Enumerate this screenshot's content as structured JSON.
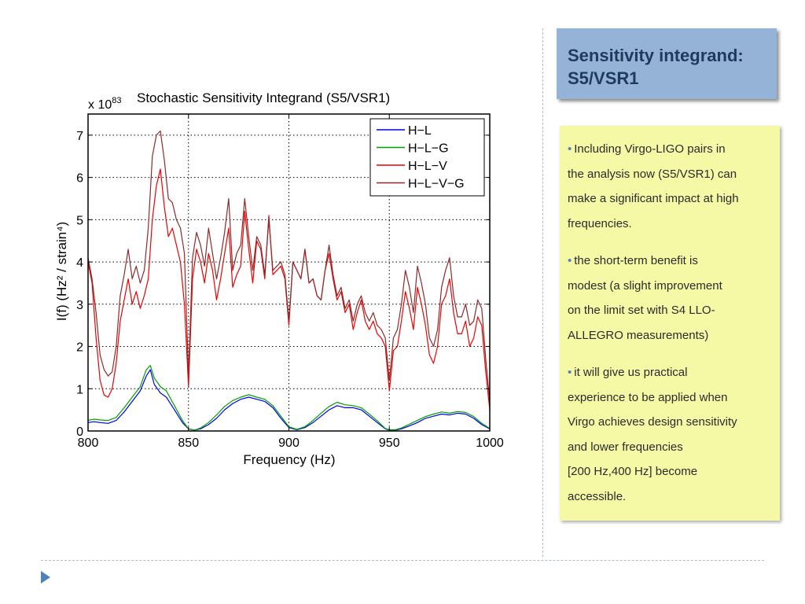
{
  "slide": {
    "title": "Sensitivity integrand: S5/VSR1",
    "bullets": [
      {
        "lines": [
          "Including Virgo-LIGO pairs in",
          "the analysis now (S5/VSR1) can",
          "make a significant impact at high",
          "frequencies."
        ]
      },
      {
        "lines": [
          "the short-term benefit is",
          "modest (a slight improvement",
          "on the limit set with S4 LLO-",
          "ALLEGRO measurements)"
        ]
      },
      {
        "lines": [
          "it will give us practical",
          "experience to be applied when",
          "Virgo achieves design sensitivity",
          "and lower frequencies",
          "[200 Hz,400 Hz] become",
          "accessible."
        ]
      }
    ],
    "colors": {
      "title_bg": "#95b3d7",
      "text_bg": "#f5f9a6",
      "bullet": "#4f81bd"
    }
  },
  "chart_data": {
    "type": "line",
    "title": "Stochastic Sensitivity Integrand (S5/VSR1)",
    "scale_label": "x 10",
    "scale_exponent": "83",
    "xlabel": "Frequency (Hz)",
    "ylabel": "I(f) (Hz² / strain⁴)",
    "xlim": [
      800,
      1000
    ],
    "ylim": [
      0,
      7.5
    ],
    "xticks": [
      800,
      850,
      900,
      950,
      1000
    ],
    "yticks": [
      0,
      1,
      2,
      3,
      4,
      5,
      6,
      7
    ],
    "grid": "dotted",
    "legend_position": "top-right",
    "series": [
      {
        "name": "H−L",
        "color": "#0000ee",
        "x": [
          800,
          803,
          806,
          810,
          814,
          818,
          822,
          826,
          829,
          831,
          833,
          836,
          839,
          843,
          847,
          850,
          853,
          856,
          860,
          864,
          868,
          872,
          876,
          880,
          884,
          888,
          892,
          896,
          900,
          904,
          908,
          912,
          916,
          920,
          924,
          928,
          932,
          936,
          940,
          944,
          948,
          950,
          953,
          956,
          960,
          964,
          968,
          972,
          976,
          980,
          984,
          988,
          992,
          996,
          1000
        ],
        "y": [
          0.2,
          0.22,
          0.2,
          0.18,
          0.25,
          0.45,
          0.7,
          0.95,
          1.3,
          1.45,
          1.1,
          0.9,
          0.8,
          0.5,
          0.2,
          0.05,
          0.02,
          0.05,
          0.15,
          0.3,
          0.5,
          0.65,
          0.75,
          0.8,
          0.75,
          0.7,
          0.55,
          0.3,
          0.08,
          0.03,
          0.08,
          0.2,
          0.35,
          0.5,
          0.6,
          0.55,
          0.55,
          0.5,
          0.35,
          0.2,
          0.05,
          0.02,
          0.02,
          0.05,
          0.12,
          0.2,
          0.3,
          0.35,
          0.4,
          0.38,
          0.42,
          0.4,
          0.3,
          0.15,
          0.05
        ]
      },
      {
        "name": "H−L−G",
        "color": "#00a000",
        "x": [
          800,
          803,
          806,
          810,
          814,
          818,
          822,
          826,
          829,
          831,
          833,
          836,
          839,
          843,
          847,
          850,
          853,
          856,
          860,
          864,
          868,
          872,
          876,
          880,
          884,
          888,
          892,
          896,
          900,
          904,
          908,
          912,
          916,
          920,
          924,
          928,
          932,
          936,
          940,
          944,
          948,
          950,
          953,
          956,
          960,
          964,
          968,
          972,
          976,
          980,
          984,
          988,
          992,
          996,
          1000
        ],
        "y": [
          0.25,
          0.28,
          0.26,
          0.25,
          0.32,
          0.55,
          0.8,
          1.05,
          1.45,
          1.55,
          1.25,
          1.05,
          0.95,
          0.6,
          0.25,
          0.05,
          0.02,
          0.07,
          0.2,
          0.38,
          0.58,
          0.72,
          0.8,
          0.86,
          0.8,
          0.75,
          0.6,
          0.35,
          0.1,
          0.04,
          0.1,
          0.25,
          0.42,
          0.58,
          0.68,
          0.62,
          0.6,
          0.55,
          0.4,
          0.24,
          0.06,
          0.03,
          0.03,
          0.07,
          0.16,
          0.25,
          0.34,
          0.4,
          0.45,
          0.42,
          0.46,
          0.44,
          0.34,
          0.18,
          0.06
        ]
      },
      {
        "name": "H−L−V",
        "color": "#ee0000",
        "x": [
          800,
          802,
          804,
          806,
          808,
          810,
          812,
          814,
          816,
          818,
          820,
          822,
          824,
          826,
          828,
          830,
          832,
          834,
          836,
          838,
          840,
          842,
          844,
          846,
          848,
          850,
          852,
          854,
          856,
          858,
          860,
          862,
          864,
          866,
          868,
          870,
          872,
          874,
          876,
          878,
          880,
          882,
          884,
          886,
          888,
          890,
          892,
          894,
          896,
          898,
          900,
          902,
          904,
          906,
          908,
          910,
          912,
          914,
          916,
          918,
          920,
          922,
          924,
          926,
          928,
          930,
          932,
          934,
          936,
          938,
          940,
          942,
          944,
          946,
          948,
          950,
          952,
          954,
          956,
          958,
          960,
          962,
          964,
          966,
          968,
          970,
          972,
          974,
          976,
          978,
          980,
          982,
          984,
          986,
          988,
          990,
          992,
          994,
          996,
          998,
          1000
        ],
        "y": [
          4.0,
          3.5,
          2.2,
          1.2,
          0.85,
          0.8,
          1.0,
          1.6,
          2.6,
          3.1,
          3.6,
          3.0,
          3.3,
          2.9,
          3.2,
          3.6,
          5.0,
          5.8,
          6.2,
          5.3,
          4.6,
          4.8,
          4.4,
          4.0,
          3.0,
          1.05,
          3.6,
          4.3,
          4.0,
          3.5,
          4.2,
          3.8,
          3.1,
          3.6,
          4.2,
          4.8,
          3.4,
          3.7,
          3.9,
          5.2,
          4.3,
          3.5,
          4.5,
          4.3,
          3.6,
          5.1,
          3.7,
          3.8,
          3.9,
          3.6,
          2.5,
          4.0,
          3.8,
          3.6,
          4.3,
          3.5,
          3.6,
          3.2,
          3.1,
          3.8,
          4.2,
          3.6,
          3.1,
          3.3,
          2.8,
          3.0,
          2.4,
          2.8,
          3.1,
          2.6,
          2.4,
          2.6,
          2.3,
          2.2,
          2.0,
          0.95,
          1.9,
          2.0,
          2.6,
          3.3,
          2.9,
          2.4,
          3.4,
          3.0,
          2.5,
          1.8,
          1.6,
          2.0,
          3.0,
          3.2,
          3.6,
          2.8,
          2.3,
          2.3,
          2.6,
          2.0,
          2.2,
          2.7,
          2.5,
          1.4,
          0.5
        ]
      },
      {
        "name": "H−L−V−G",
        "color": "#8b2b2b",
        "x": [
          800,
          802,
          804,
          806,
          808,
          810,
          812,
          814,
          816,
          818,
          820,
          822,
          824,
          826,
          828,
          830,
          832,
          834,
          836,
          838,
          840,
          842,
          844,
          846,
          848,
          850,
          852,
          854,
          856,
          858,
          860,
          862,
          864,
          866,
          868,
          870,
          872,
          874,
          876,
          878,
          880,
          882,
          884,
          886,
          888,
          890,
          892,
          894,
          896,
          898,
          900,
          902,
          904,
          906,
          908,
          910,
          912,
          914,
          916,
          918,
          920,
          922,
          924,
          926,
          928,
          930,
          932,
          934,
          936,
          938,
          940,
          942,
          944,
          946,
          948,
          950,
          952,
          954,
          956,
          958,
          960,
          962,
          964,
          966,
          968,
          970,
          972,
          974,
          976,
          978,
          980,
          982,
          984,
          986,
          988,
          990,
          992,
          994,
          996,
          998,
          1000
        ],
        "y": [
          4.1,
          3.6,
          2.8,
          1.8,
          1.45,
          1.3,
          1.4,
          2.0,
          3.2,
          3.7,
          4.3,
          3.6,
          3.9,
          3.5,
          3.8,
          4.8,
          6.5,
          7.0,
          7.1,
          6.4,
          5.5,
          5.4,
          5.0,
          4.8,
          4.2,
          1.3,
          4.1,
          4.7,
          4.4,
          3.9,
          4.8,
          4.2,
          3.6,
          4.1,
          4.7,
          5.5,
          3.8,
          4.2,
          4.4,
          5.5,
          4.6,
          3.8,
          4.6,
          4.4,
          3.7,
          5.0,
          3.8,
          3.9,
          4.0,
          3.7,
          2.6,
          4.0,
          3.8,
          3.6,
          4.3,
          3.5,
          3.6,
          3.2,
          3.1,
          3.8,
          4.4,
          3.7,
          3.2,
          3.4,
          2.9,
          3.1,
          2.6,
          3.0,
          3.2,
          2.8,
          2.6,
          2.8,
          2.5,
          2.4,
          2.2,
          1.2,
          2.2,
          2.4,
          3.0,
          3.8,
          3.4,
          2.8,
          3.9,
          3.5,
          3.0,
          2.2,
          2.0,
          2.4,
          3.4,
          3.8,
          4.1,
          3.2,
          2.7,
          2.7,
          3.0,
          2.5,
          2.6,
          3.1,
          2.9,
          1.7,
          0.7
        ]
      }
    ]
  }
}
